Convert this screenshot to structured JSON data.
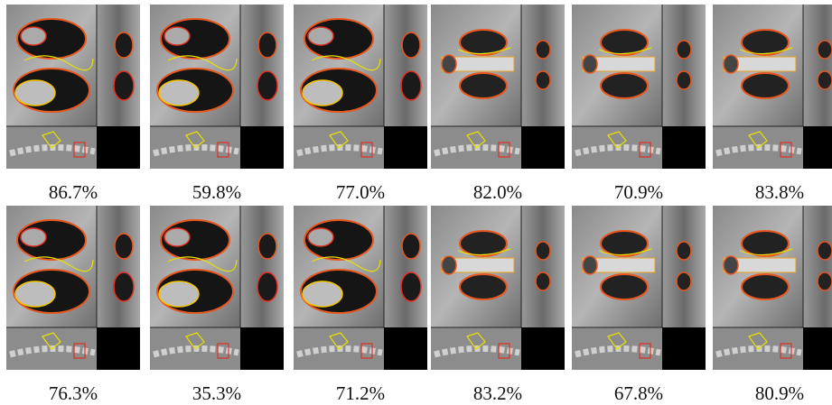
{
  "rows": [
    {
      "captions": [
        "86.7%",
        "59.8%",
        "77.0%",
        "82.0%",
        "70.9%",
        "83.8%"
      ]
    },
    {
      "captions": [
        "76.3%",
        "35.3%",
        "71.2%",
        "83.2%",
        "67.8%",
        "80.9%"
      ]
    }
  ]
}
